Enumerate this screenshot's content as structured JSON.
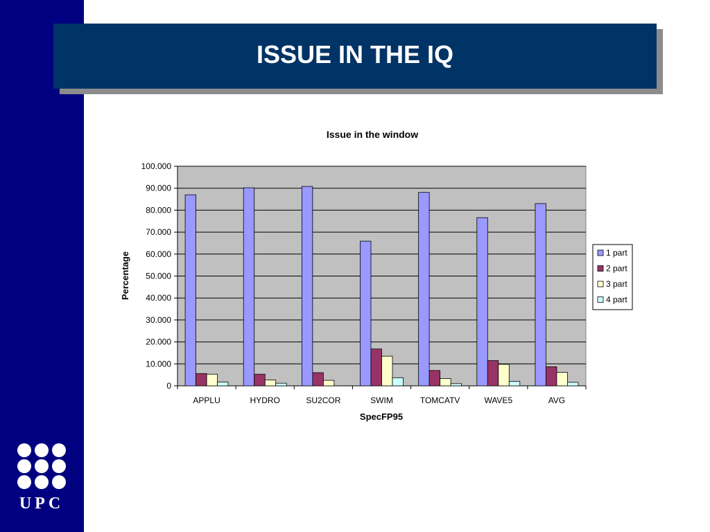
{
  "slide": {
    "title": "ISSUE IN THE IQ",
    "logo_text": "UPC",
    "colors": {
      "sidebar": "#000080",
      "title_bar": "#003366",
      "plot_background": "#c0c0c0"
    }
  },
  "chart_data": {
    "type": "bar",
    "title": "Issue in the window",
    "xlabel": "SpecFP95",
    "ylabel": "Percentage",
    "categories": [
      "APPLU",
      "HYDRO",
      "SU2COR",
      "SWIM",
      "TOMCATV",
      "WAVE5",
      "AVG"
    ],
    "series": [
      {
        "name": "1 part",
        "color": "#9999ff",
        "values": [
          87.0,
          90.2,
          90.8,
          65.9,
          88.1,
          76.6,
          83.0
        ]
      },
      {
        "name": "2 part",
        "color": "#993366",
        "values": [
          5.6,
          5.3,
          6.0,
          16.8,
          7.0,
          11.5,
          8.7
        ]
      },
      {
        "name": "3 part",
        "color": "#ffffcc",
        "values": [
          5.3,
          2.7,
          2.5,
          13.5,
          3.3,
          9.8,
          6.1
        ]
      },
      {
        "name": "4 part",
        "color": "#ccffff",
        "values": [
          1.7,
          1.2,
          0.0,
          3.7,
          1.0,
          2.0,
          1.6
        ]
      }
    ],
    "ylim": [
      0,
      100
    ],
    "yticks": [
      "0",
      "10.000",
      "20.000",
      "30.000",
      "40.000",
      "50.000",
      "60.000",
      "70.000",
      "80.000",
      "90.000",
      "100.000"
    ],
    "grid": true,
    "legend": "right"
  }
}
